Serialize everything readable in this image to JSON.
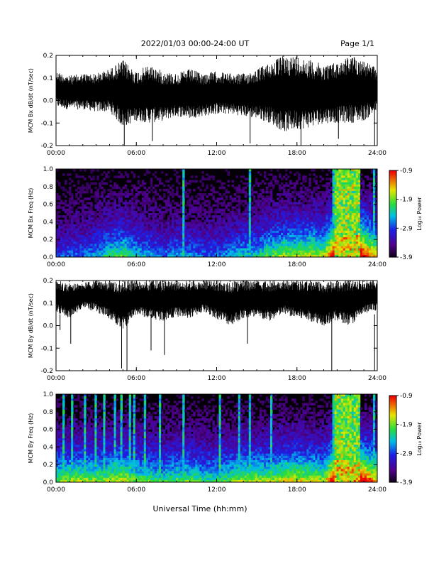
{
  "header": {
    "title": "2022/01/03  00:00-24:00 UT",
    "page": "Page 1/1"
  },
  "footer": {
    "xlabel": "Universal Time (hh:mm)"
  },
  "chart_data": [
    {
      "type": "line",
      "ylabel": "MCM Bx dB/dt (nT/sec)",
      "xlim": [
        "00:00",
        "24:00"
      ],
      "ylim": [
        -0.2,
        0.2
      ],
      "yticks": [
        "0.2",
        "0.1",
        "0.0",
        "-0.1",
        "-0.2"
      ],
      "xticks": [
        "00:00",
        "06:00",
        "12:00",
        "18:00",
        "24:00"
      ],
      "series": [
        {
          "x_hours": [
            0,
            1,
            2,
            3,
            4,
            5,
            6,
            7,
            8,
            9,
            10,
            11,
            12,
            13,
            14,
            15,
            16,
            17,
            18,
            19,
            20,
            21,
            22,
            23,
            24
          ],
          "upper": [
            0.13,
            0.11,
            0.12,
            0.12,
            0.14,
            0.18,
            0.13,
            0.16,
            0.13,
            0.12,
            0.14,
            0.12,
            0.13,
            0.12,
            0.12,
            0.14,
            0.17,
            0.2,
            0.2,
            0.18,
            0.16,
            0.17,
            0.2,
            0.18,
            0.14
          ],
          "lower": [
            -0.03,
            -0.04,
            -0.04,
            -0.05,
            -0.05,
            -0.12,
            -0.09,
            -0.1,
            -0.09,
            -0.07,
            -0.08,
            -0.07,
            -0.06,
            -0.06,
            -0.07,
            -0.08,
            -0.1,
            -0.14,
            -0.13,
            -0.12,
            -0.1,
            -0.1,
            -0.1,
            -0.09,
            -0.05
          ],
          "spikes": [
            [
              5.1,
              -0.2
            ],
            [
              7.2,
              -0.18
            ],
            [
              14.5,
              -0.19
            ],
            [
              18.3,
              -0.2
            ],
            [
              23.8,
              -0.2
            ],
            [
              21.1,
              -0.17
            ]
          ]
        }
      ]
    },
    {
      "type": "heatmap",
      "ylabel": "MCM Bx Freq (Hz)",
      "colorbar_label": "Log₁₀ Power",
      "colorbar_ticks": [
        "-0.9",
        "-1.9",
        "-2.9",
        "-3.9"
      ],
      "crange": [
        -3.9,
        -0.9
      ],
      "xlim": [
        "00:00",
        "24:00"
      ],
      "ylim": [
        0.0,
        1.0
      ],
      "yticks": [
        "1.0",
        "0.8",
        "0.6",
        "0.4",
        "0.2",
        "0.0"
      ],
      "xticks": [
        "00:00",
        "06:00",
        "12:00",
        "18:00",
        "24:00"
      ],
      "activity_by_hour": [
        0.25,
        0.3,
        0.3,
        0.35,
        0.45,
        0.5,
        0.4,
        0.35,
        0.3,
        0.35,
        0.35,
        0.3,
        0.3,
        0.35,
        0.4,
        0.4,
        0.5,
        0.55,
        0.55,
        0.6,
        0.55,
        0.95,
        0.95,
        0.8,
        0.6
      ],
      "bright_stripes_hours": [
        9.5,
        14.5,
        20.8,
        21.4,
        22.0,
        23.7
      ]
    },
    {
      "type": "line",
      "ylabel": "MCM By dB/dt (nT/sec)",
      "xlim": [
        "00:00",
        "24:00"
      ],
      "ylim": [
        -0.2,
        0.2
      ],
      "yticks": [
        "0.2",
        "0.1",
        "0.0",
        "-0.1",
        "-0.2"
      ],
      "xticks": [
        "00:00",
        "06:00",
        "12:00",
        "18:00",
        "24:00"
      ],
      "series": [
        {
          "x_hours": [
            0,
            1,
            2,
            3,
            4,
            5,
            6,
            7,
            8,
            9,
            10,
            11,
            12,
            13,
            14,
            15,
            16,
            17,
            18,
            19,
            20,
            21,
            22,
            23,
            24
          ],
          "upper": [
            0.2,
            0.19,
            0.19,
            0.2,
            0.2,
            0.2,
            0.2,
            0.2,
            0.2,
            0.2,
            0.2,
            0.2,
            0.2,
            0.2,
            0.2,
            0.2,
            0.2,
            0.2,
            0.2,
            0.2,
            0.2,
            0.2,
            0.2,
            0.2,
            0.2
          ],
          "lower": [
            0.06,
            0.03,
            0.08,
            0.06,
            0.03,
            -0.02,
            0.05,
            0.03,
            0.02,
            0.04,
            0.03,
            0.06,
            0.03,
            0.0,
            0.03,
            0.03,
            0.02,
            0.05,
            0.03,
            0.02,
            0.0,
            0.02,
            0.0,
            0.05,
            0.07
          ],
          "spikes": [
            [
              0.3,
              -0.02
            ],
            [
              1.1,
              -0.08
            ],
            [
              4.9,
              -0.19
            ],
            [
              5.3,
              -0.2
            ],
            [
              7.1,
              -0.11
            ],
            [
              8.1,
              -0.13
            ],
            [
              14.3,
              -0.08
            ],
            [
              20.6,
              -0.2
            ],
            [
              23.8,
              -0.2
            ]
          ]
        }
      ]
    },
    {
      "type": "heatmap",
      "ylabel": "MCM By Freq (Hz)",
      "colorbar_label": "Log₁₀ Power",
      "colorbar_ticks": [
        "-0.9",
        "-1.9",
        "-2.9",
        "-3.9"
      ],
      "crange": [
        -3.9,
        -0.9
      ],
      "xlim": [
        "00:00",
        "24:00"
      ],
      "ylim": [
        0.0,
        1.0
      ],
      "yticks": [
        "1.0",
        "0.8",
        "0.6",
        "0.4",
        "0.2",
        "0.0"
      ],
      "xticks": [
        "00:00",
        "06:00",
        "12:00",
        "18:00",
        "24:00"
      ],
      "activity_by_hour": [
        0.5,
        0.55,
        0.55,
        0.55,
        0.55,
        0.6,
        0.5,
        0.5,
        0.45,
        0.5,
        0.5,
        0.45,
        0.45,
        0.5,
        0.55,
        0.55,
        0.55,
        0.6,
        0.6,
        0.6,
        0.55,
        0.95,
        0.95,
        0.8,
        0.65
      ],
      "bright_stripes_hours": [
        0.6,
        1.2,
        2.2,
        2.9,
        3.6,
        4.4,
        4.9,
        5.5,
        5.9,
        6.6,
        7.8,
        9.5,
        12.2,
        13.7,
        14.5,
        16.1,
        20.8,
        21.4,
        22.0,
        23.7
      ]
    }
  ]
}
